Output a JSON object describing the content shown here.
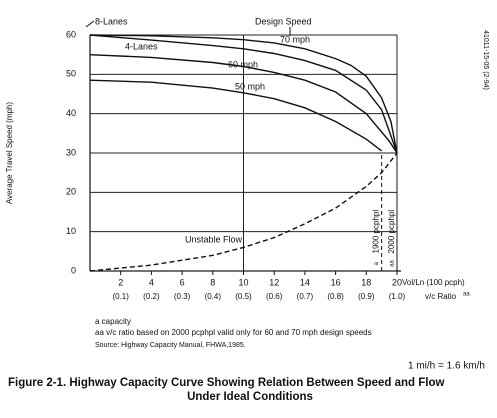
{
  "chart_data": {
    "type": "line",
    "title": [
      "Figure 2-1. Highway Capacity Curve Showing Relation Between Speed and Flow",
      "Under Ideal Conditions"
    ],
    "y_label": "Average Travel Speed (mph)",
    "x_label": "Vol/Ln (100 pcph)",
    "x2_label": "v/c Ratio",
    "x2_label_note": "aa",
    "xlim": [
      0,
      20
    ],
    "ylim": [
      0,
      60
    ],
    "xticks": [
      2,
      4,
      6,
      8,
      10,
      12,
      14,
      16,
      18,
      20
    ],
    "x2ticks": [
      "(0.1)",
      "(0.2)",
      "(0.3)",
      "(0.4)",
      "(0.5)",
      "(0.6)",
      "(0.7)",
      "(0.8)",
      "(0.9)",
      "(1.0)"
    ],
    "yticks": [
      0,
      10,
      20,
      30,
      40,
      50,
      60
    ],
    "vgrid": [
      10,
      20
    ],
    "grid": true,
    "series": [
      {
        "name": "8-Lanes",
        "color": "#111",
        "dash": false,
        "x": [
          0,
          4,
          8,
          10,
          12,
          14,
          16,
          17,
          18,
          19,
          19.6,
          20
        ],
        "values": [
          60,
          59.8,
          59.3,
          58.8,
          58,
          56.5,
          54,
          52.3,
          49.5,
          44,
          38,
          30
        ]
      },
      {
        "name": "4-Lanes",
        "color": "#111",
        "dash": false,
        "x": [
          0,
          4,
          8,
          10,
          12,
          14,
          16,
          18,
          19,
          20
        ],
        "values": [
          60,
          58.7,
          57.3,
          56.5,
          55.3,
          53.5,
          51,
          46,
          41,
          30
        ]
      },
      {
        "name": "60 mph",
        "color": "#111",
        "dash": false,
        "x": [
          0,
          4,
          8,
          10,
          12,
          14,
          16,
          18,
          19.5,
          20
        ],
        "values": [
          55,
          54.3,
          53,
          52,
          50.5,
          48.5,
          45.5,
          40,
          33,
          30
        ]
      },
      {
        "name": "50 mph",
        "color": "#111",
        "dash": false,
        "x": [
          0,
          4,
          8,
          10,
          12,
          14,
          16,
          18,
          19
        ],
        "values": [
          48.5,
          48,
          46.5,
          45.3,
          43.8,
          41.5,
          38,
          33.5,
          30.5
        ]
      },
      {
        "name": "Unstable Flow",
        "color": "#111",
        "dash": true,
        "x": [
          0,
          4,
          8,
          10,
          12,
          14,
          16,
          18,
          19,
          20
        ],
        "values": [
          0,
          1.5,
          4,
          6,
          8.5,
          12,
          16,
          21.5,
          25,
          30
        ]
      }
    ],
    "capacity_lines": [
      {
        "x": 19,
        "label": "1900 pcphpl",
        "note": "a"
      },
      {
        "x": 20,
        "label": "2000 pcphpl",
        "note": "aa"
      }
    ],
    "annotations": [
      "Design Speed",
      "70 mph"
    ],
    "footnotes": [
      "a  capacity",
      "aa  v/c ratio based on 2000 pcphpl valid only for 60 and 70 mph design speeds",
      "Source: Highway Capacity Manual, FHWA,1985."
    ],
    "conversion": "1 mi/h = 1.6 km/h",
    "side_code": "41011-15-05 (2-94)"
  }
}
